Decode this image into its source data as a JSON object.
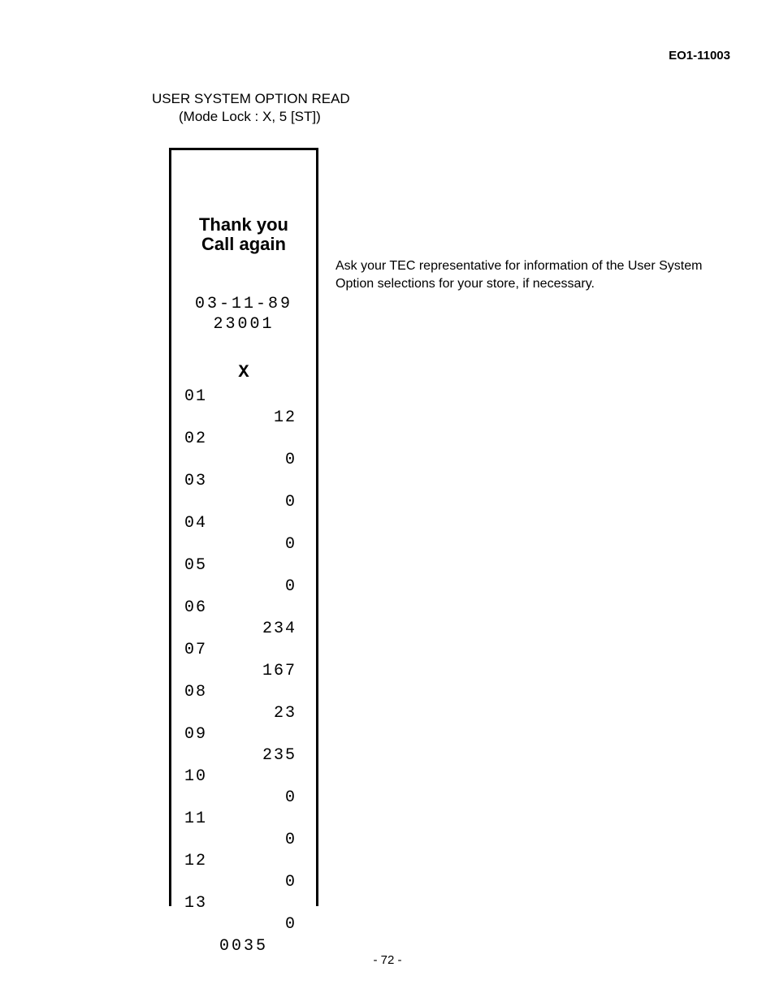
{
  "header": {
    "doc_id": "EO1-11003"
  },
  "section": {
    "title": "USER SYSTEM OPTION READ",
    "subtitle": "(Mode Lock : X, 5 [ST])"
  },
  "receipt": {
    "greeting_line1": "Thank you",
    "greeting_line2": "Call again",
    "date": "03-11-89",
    "sequence": "23001",
    "mode": "X",
    "rows": [
      {
        "num": "01",
        "val": "12"
      },
      {
        "num": "02",
        "val": "0"
      },
      {
        "num": "03",
        "val": "0"
      },
      {
        "num": "04",
        "val": "0"
      },
      {
        "num": "05",
        "val": "0"
      },
      {
        "num": "06",
        "val": "234"
      },
      {
        "num": "07",
        "val": "167"
      },
      {
        "num": "08",
        "val": "23"
      },
      {
        "num": "09",
        "val": "235"
      },
      {
        "num": "10",
        "val": "0"
      },
      {
        "num": "11",
        "val": "0"
      },
      {
        "num": "12",
        "val": "0"
      },
      {
        "num": "13",
        "val": "0"
      }
    ],
    "footer": "0035"
  },
  "side_note": "Ask your TEC representative for information of the User System Option selections for your store, if necessary.",
  "page_number": "- 72 -"
}
